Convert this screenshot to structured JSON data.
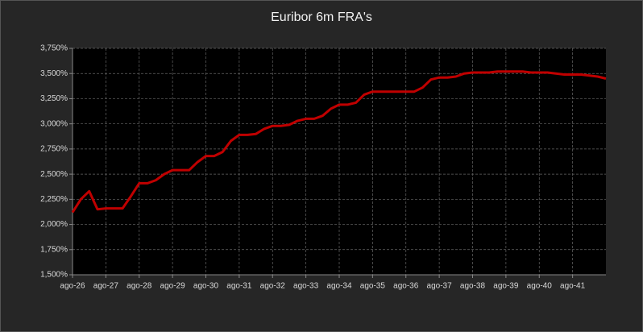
{
  "chart_data": {
    "type": "line",
    "title": "Euribor 6m FRA's",
    "categories": [
      "ago-26",
      null,
      null,
      null,
      "ago-27",
      null,
      null,
      null,
      "ago-28",
      null,
      null,
      null,
      "ago-29",
      null,
      null,
      null,
      "ago-30",
      null,
      null,
      null,
      "ago-31",
      null,
      null,
      null,
      "ago-32",
      null,
      null,
      null,
      "ago-33",
      null,
      null,
      null,
      "ago-34",
      null,
      null,
      null,
      "ago-35",
      null,
      null,
      null,
      "ago-36",
      null,
      null,
      null,
      "ago-37",
      null,
      null,
      null,
      "ago-38",
      null,
      null,
      null,
      "ago-39",
      null,
      null,
      null,
      "ago-40",
      null,
      null,
      null,
      "ago-41",
      null,
      null,
      null,
      null
    ],
    "values": [
      2.12,
      2.25,
      2.33,
      2.15,
      2.16,
      2.16,
      2.16,
      2.28,
      2.41,
      2.41,
      2.44,
      2.5,
      2.54,
      2.54,
      2.54,
      2.62,
      2.68,
      2.68,
      2.72,
      2.83,
      2.89,
      2.89,
      2.9,
      2.95,
      2.98,
      2.98,
      2.99,
      3.03,
      3.05,
      3.05,
      3.08,
      3.15,
      3.19,
      3.19,
      3.21,
      3.29,
      3.32,
      3.32,
      3.32,
      3.32,
      3.32,
      3.32,
      3.36,
      3.44,
      3.46,
      3.46,
      3.47,
      3.5,
      3.51,
      3.51,
      3.51,
      3.52,
      3.52,
      3.52,
      3.52,
      3.51,
      3.51,
      3.51,
      3.5,
      3.49,
      3.49,
      3.49,
      3.48,
      3.47,
      3.45
    ],
    "color": "#c00000",
    "ylim": [
      1.5,
      3.75
    ],
    "yticks": [
      {
        "value": 1.5,
        "label": "1,500%"
      },
      {
        "value": 1.75,
        "label": "1,750%"
      },
      {
        "value": 2,
        "label": "2,000%"
      },
      {
        "value": 2.25,
        "label": "2,250%"
      },
      {
        "value": 2.5,
        "label": "2,500%"
      },
      {
        "value": 2.75,
        "label": "2,750%"
      },
      {
        "value": 3,
        "label": "3,000%"
      },
      {
        "value": 3.25,
        "label": "3,250%"
      },
      {
        "value": 3.5,
        "label": "3,500%"
      },
      {
        "value": 3.75,
        "label": "3,750%"
      }
    ],
    "grid": true
  }
}
